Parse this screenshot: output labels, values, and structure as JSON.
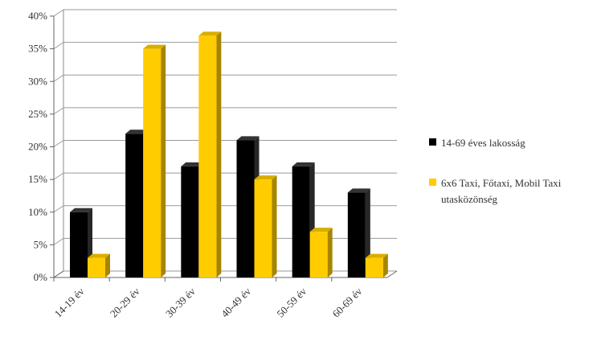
{
  "chart_data": {
    "type": "bar",
    "categories": [
      "14-19 év",
      "20-29 év",
      "30-39 év",
      "40-49 év",
      "50-59 év",
      "60-69 év"
    ],
    "series": [
      {
        "name": "14-69 éves lakosság",
        "values": [
          10,
          22,
          17,
          21,
          17,
          13
        ],
        "color": "#000000"
      },
      {
        "name": "6x6 Taxi, Főtaxi, Mobil Taxi utasközönség",
        "values": [
          3,
          35,
          37,
          15,
          7,
          3
        ],
        "color": "#FFCC00"
      }
    ],
    "yticks": [
      "0%",
      "5%",
      "10%",
      "15%",
      "20%",
      "25%",
      "30%",
      "35%",
      "40%"
    ],
    "ylim": [
      0,
      40
    ],
    "grid": true,
    "legend_position": "right",
    "style": "3d-clustered-column"
  }
}
